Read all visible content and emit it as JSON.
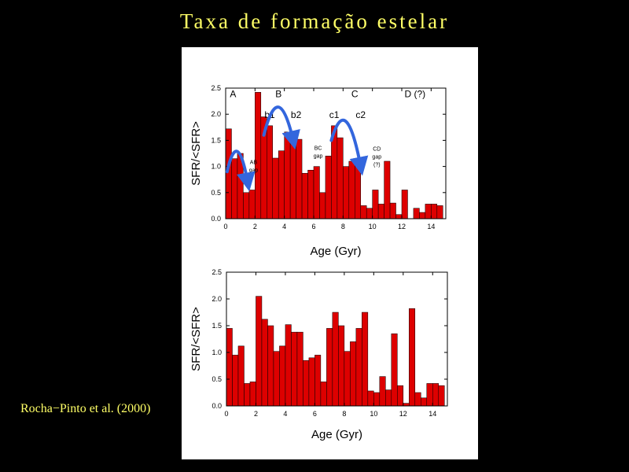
{
  "title": "Taxa de formação estelar",
  "citation": "Rocha−Pinto et al. (2000)",
  "colors": {
    "background": "#000000",
    "title": "#ffff66",
    "bar_fill": "#dd0000",
    "arrow": "#3366dd"
  },
  "chart_data": [
    {
      "type": "bar",
      "xlabel": "Age (Gyr)",
      "ylabel": "SFR/<SFR>",
      "xlim": [
        0,
        15
      ],
      "ylim": [
        0,
        2.5
      ],
      "xticks": [
        "0",
        "2",
        "4",
        "6",
        "8",
        "10",
        "12",
        "14"
      ],
      "yticks": [
        "0.0",
        "0.5",
        "1.0",
        "1.5",
        "2.0",
        "2.5"
      ],
      "bin_width": 0.4,
      "x": [
        0.2,
        0.6,
        1.0,
        1.4,
        1.8,
        2.2,
        2.6,
        3.0,
        3.4,
        3.8,
        4.2,
        4.6,
        5.0,
        5.4,
        5.8,
        6.2,
        6.6,
        7.0,
        7.4,
        7.8,
        8.2,
        8.6,
        9.0,
        9.4,
        9.8,
        10.2,
        10.6,
        11.0,
        11.4,
        11.8,
        12.2,
        12.6,
        13.0,
        13.4,
        13.8,
        14.2,
        14.6
      ],
      "values": [
        1.72,
        1.15,
        1.25,
        0.5,
        0.55,
        2.42,
        1.95,
        1.78,
        1.16,
        1.3,
        1.66,
        1.55,
        1.52,
        0.87,
        0.93,
        1.0,
        0.5,
        1.2,
        1.78,
        1.55,
        1.0,
        1.1,
        1.08,
        0.25,
        0.2,
        0.55,
        0.28,
        1.1,
        0.3,
        0.08,
        0.55,
        0.0,
        0.2,
        0.12,
        0.28,
        0.28,
        0.25
      ],
      "annotations": [
        {
          "text": "A",
          "x": 0.5,
          "y": 2.4
        },
        {
          "text": "B",
          "x": 3.6,
          "y": 2.4
        },
        {
          "text": "C",
          "x": 8.8,
          "y": 2.4
        },
        {
          "text": "D (?)",
          "x": 12.9,
          "y": 2.4
        },
        {
          "text": "b1",
          "x": 3.0,
          "y": 2.0
        },
        {
          "text": "b2",
          "x": 4.8,
          "y": 2.0
        },
        {
          "text": "c1",
          "x": 7.4,
          "y": 2.0
        },
        {
          "text": "c2",
          "x": 9.2,
          "y": 2.0
        }
      ],
      "gap_labels": [
        {
          "lines": [
            "AB",
            "gap"
          ],
          "x": 1.9,
          "y": 1.05
        },
        {
          "lines": [
            "BC",
            "gap"
          ],
          "x": 6.3,
          "y": 1.32
        },
        {
          "lines": [
            "CD",
            "gap",
            "(?)"
          ],
          "x": 10.3,
          "y": 1.3
        }
      ],
      "arrows": [
        {
          "from": [
            0.1,
            0.9
          ],
          "to": [
            1.5,
            0.7
          ],
          "peak": 1.5
        },
        {
          "from": [
            2.6,
            1.6
          ],
          "to": [
            4.6,
            1.5
          ],
          "peak": 2.45
        },
        {
          "from": [
            7.2,
            1.5
          ],
          "to": [
            9.2,
            1.0
          ],
          "peak": 2.2
        }
      ]
    },
    {
      "type": "bar",
      "xlabel": "Age (Gyr)",
      "ylabel": "SFR/<SFR>",
      "xlim": [
        0,
        15
      ],
      "ylim": [
        0,
        2.5
      ],
      "xticks": [
        "0",
        "2",
        "4",
        "6",
        "8",
        "10",
        "12",
        "14"
      ],
      "yticks": [
        "0.0",
        "0.5",
        "1.0",
        "1.5",
        "2.0",
        "2.5"
      ],
      "bin_width": 0.4,
      "x": [
        0.2,
        0.6,
        1.0,
        1.4,
        1.8,
        2.2,
        2.6,
        3.0,
        3.4,
        3.8,
        4.2,
        4.6,
        5.0,
        5.4,
        5.8,
        6.2,
        6.6,
        7.0,
        7.4,
        7.8,
        8.2,
        8.6,
        9.0,
        9.4,
        9.8,
        10.2,
        10.6,
        11.0,
        11.4,
        11.8,
        12.2,
        12.6,
        13.0,
        13.4,
        13.8,
        14.2,
        14.6
      ],
      "values": [
        1.45,
        0.95,
        1.12,
        0.42,
        0.45,
        2.05,
        1.62,
        1.5,
        1.02,
        1.12,
        1.52,
        1.38,
        1.38,
        0.85,
        0.9,
        0.95,
        0.45,
        1.45,
        1.75,
        1.5,
        1.02,
        1.2,
        1.45,
        1.75,
        0.28,
        0.25,
        0.55,
        0.3,
        1.35,
        0.38,
        0.05,
        1.82,
        0.25,
        0.15,
        0.42,
        0.42,
        0.38
      ]
    }
  ]
}
